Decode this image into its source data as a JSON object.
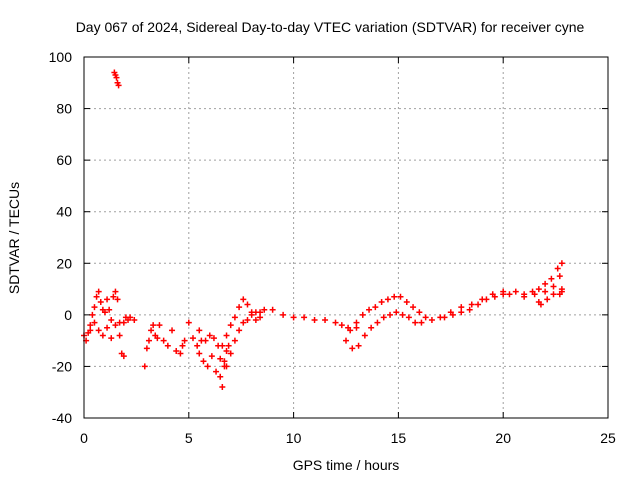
{
  "chart_data": {
    "type": "scatter",
    "title": "Day 067 of 2024, Sidereal Day-to-day VTEC variation (SDTVAR) for receiver cyne",
    "xlabel": "GPS time / hours",
    "ylabel": "SDTVAR / TECUs",
    "xlim": [
      0,
      25
    ],
    "ylim": [
      -40,
      100
    ],
    "xticks": [
      0,
      5,
      10,
      15,
      20,
      25
    ],
    "yticks": [
      -40,
      -20,
      0,
      20,
      40,
      60,
      80,
      100
    ],
    "grid": true,
    "marker": "+",
    "color": "#ff0000",
    "series": [
      {
        "name": "SDTVAR",
        "points": [
          [
            0.0,
            -8
          ],
          [
            0.1,
            -10
          ],
          [
            0.2,
            -7
          ],
          [
            0.3,
            -4
          ],
          [
            0.4,
            0
          ],
          [
            0.5,
            3
          ],
          [
            0.6,
            7
          ],
          [
            0.7,
            9
          ],
          [
            0.8,
            5
          ],
          [
            0.9,
            2
          ],
          [
            1.0,
            1
          ],
          [
            1.1,
            6
          ],
          [
            1.2,
            2
          ],
          [
            1.3,
            -2
          ],
          [
            1.4,
            7
          ],
          [
            1.5,
            9
          ],
          [
            1.6,
            6
          ],
          [
            1.7,
            -8
          ],
          [
            1.8,
            -15
          ],
          [
            1.9,
            -16
          ],
          [
            2.0,
            -1
          ],
          [
            2.2,
            -1
          ],
          [
            2.4,
            -2
          ],
          [
            0.3,
            -6
          ],
          [
            0.5,
            -3
          ],
          [
            0.7,
            -6
          ],
          [
            0.9,
            -8
          ],
          [
            1.1,
            -5
          ],
          [
            1.3,
            -9
          ],
          [
            1.5,
            -4
          ],
          [
            1.7,
            -3
          ],
          [
            1.9,
            -3
          ],
          [
            2.1,
            -2
          ],
          [
            1.45,
            94
          ],
          [
            1.5,
            93
          ],
          [
            1.55,
            92
          ],
          [
            1.6,
            90
          ],
          [
            1.65,
            89
          ],
          [
            2.9,
            -20
          ],
          [
            3.0,
            -13
          ],
          [
            3.1,
            -10
          ],
          [
            3.2,
            -6
          ],
          [
            3.3,
            -4
          ],
          [
            3.4,
            -8
          ],
          [
            3.5,
            -9
          ],
          [
            3.6,
            -4
          ],
          [
            3.8,
            -10
          ],
          [
            4.0,
            -12
          ],
          [
            4.2,
            -6
          ],
          [
            4.4,
            -14
          ],
          [
            4.6,
            -15
          ],
          [
            4.7,
            -12
          ],
          [
            4.8,
            -10
          ],
          [
            5.0,
            -3
          ],
          [
            5.2,
            -9
          ],
          [
            5.4,
            -12
          ],
          [
            5.5,
            -6
          ],
          [
            5.6,
            -10
          ],
          [
            5.8,
            -10
          ],
          [
            6.0,
            -8
          ],
          [
            6.2,
            -9
          ],
          [
            6.4,
            -12
          ],
          [
            6.5,
            -17
          ],
          [
            6.6,
            -28
          ],
          [
            6.7,
            -20
          ],
          [
            6.8,
            -14
          ],
          [
            5.5,
            -15
          ],
          [
            5.7,
            -18
          ],
          [
            5.9,
            -20
          ],
          [
            6.1,
            -16
          ],
          [
            6.3,
            -22
          ],
          [
            6.5,
            -24
          ],
          [
            6.7,
            -18
          ],
          [
            6.9,
            -12
          ],
          [
            6.6,
            -12
          ],
          [
            6.8,
            -8
          ],
          [
            7.0,
            -4
          ],
          [
            7.2,
            -1
          ],
          [
            7.4,
            3
          ],
          [
            7.6,
            6
          ],
          [
            7.8,
            4
          ],
          [
            8.0,
            1
          ],
          [
            8.2,
            -2
          ],
          [
            8.4,
            -1
          ],
          [
            6.8,
            -20
          ],
          [
            7.0,
            -15
          ],
          [
            7.2,
            -10
          ],
          [
            7.4,
            -6
          ],
          [
            7.6,
            -3
          ],
          [
            7.8,
            -2
          ],
          [
            8.0,
            0
          ],
          [
            8.2,
            1
          ],
          [
            8.4,
            1
          ],
          [
            8.6,
            2
          ],
          [
            9.0,
            2
          ],
          [
            9.5,
            0
          ],
          [
            10,
            -1
          ],
          [
            10.5,
            -1
          ],
          [
            11,
            -2
          ],
          [
            11.5,
            -2
          ],
          [
            12,
            -3
          ],
          [
            12.3,
            -4
          ],
          [
            12.6,
            -5
          ],
          [
            13.0,
            -5
          ],
          [
            12.5,
            -10
          ],
          [
            12.8,
            -13
          ],
          [
            13.1,
            -12
          ],
          [
            13.4,
            -8
          ],
          [
            13.7,
            -5
          ],
          [
            14.0,
            -3
          ],
          [
            14.3,
            -1
          ],
          [
            14.6,
            0
          ],
          [
            14.9,
            1
          ],
          [
            15.2,
            0
          ],
          [
            15.5,
            -1
          ],
          [
            15.8,
            -3
          ],
          [
            16.1,
            -3
          ],
          [
            12.7,
            -6
          ],
          [
            13.0,
            -3
          ],
          [
            13.3,
            0
          ],
          [
            13.6,
            2
          ],
          [
            13.9,
            3
          ],
          [
            14.2,
            5
          ],
          [
            14.5,
            6
          ],
          [
            14.8,
            7
          ],
          [
            15.1,
            7
          ],
          [
            15.4,
            5
          ],
          [
            15.7,
            3
          ],
          [
            16.0,
            1
          ],
          [
            16.3,
            -1
          ],
          [
            16.6,
            -2
          ],
          [
            17.0,
            -1
          ],
          [
            17.5,
            1
          ],
          [
            18.0,
            3
          ],
          [
            18.5,
            4
          ],
          [
            19.0,
            6
          ],
          [
            19.5,
            8
          ],
          [
            20.0,
            9
          ],
          [
            17.2,
            -1
          ],
          [
            17.6,
            0
          ],
          [
            18.0,
            1
          ],
          [
            18.4,
            2
          ],
          [
            18.8,
            4
          ],
          [
            19.2,
            6
          ],
          [
            19.6,
            7
          ],
          [
            20.0,
            8
          ],
          [
            20.3,
            8
          ],
          [
            20.6,
            9
          ],
          [
            21.0,
            8
          ],
          [
            21.4,
            9
          ],
          [
            21.7,
            10
          ],
          [
            22.0,
            12
          ],
          [
            22.3,
            14
          ],
          [
            22.6,
            18
          ],
          [
            22.8,
            20
          ],
          [
            21.0,
            7
          ],
          [
            21.5,
            8
          ],
          [
            22.0,
            9
          ],
          [
            22.4,
            11
          ],
          [
            22.7,
            15
          ],
          [
            22.8,
            10
          ],
          [
            21.8,
            4
          ],
          [
            22.1,
            6
          ],
          [
            22.4,
            8
          ],
          [
            22.7,
            8
          ],
          [
            22.8,
            9
          ],
          [
            21.7,
            5
          ]
        ]
      }
    ]
  }
}
